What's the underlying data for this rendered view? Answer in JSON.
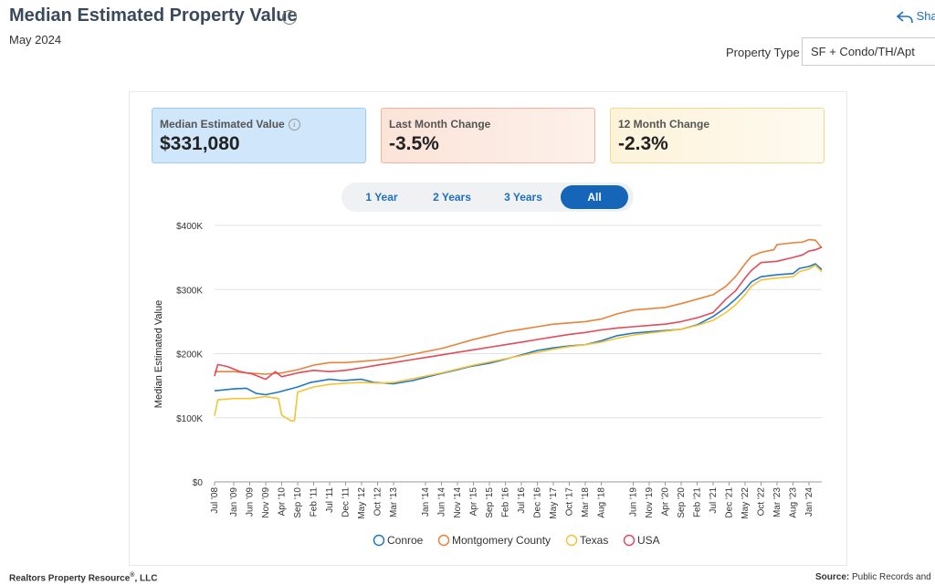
{
  "header": {
    "title": "Median Estimated Property Value",
    "date": "May 2024",
    "share_label": "Sha",
    "property_type_label": "Property Type",
    "property_type_value": "SF + Condo/TH/Apt"
  },
  "cards": [
    {
      "label": "Median Estimated Value",
      "value": "$331,080"
    },
    {
      "label": "Last Month Change",
      "value": "-3.5%"
    },
    {
      "label": "12 Month Change",
      "value": "-2.3%"
    }
  ],
  "ranges": [
    "1 Year",
    "2 Years",
    "3 Years",
    "All"
  ],
  "active_range": "All",
  "footer": {
    "left_a": "Realtors Property Resource",
    "left_reg": "®",
    "left_b": ", LLC",
    "source_label": "Source:",
    "source_text": "Public Records and"
  },
  "chart_data": {
    "type": "line",
    "ylabel": "Median Estimated Value",
    "xlabel": "",
    "ylim": [
      0,
      400000
    ],
    "y_ticks": [
      0,
      100000,
      200000,
      300000,
      400000
    ],
    "y_tick_labels": [
      "$0",
      "$100K",
      "$200K",
      "$300K",
      "$400K"
    ],
    "x_tick_labels": [
      "Jul '08",
      "Jan '09",
      "Jun '09",
      "Nov '09",
      "Apr '10",
      "Sep '10",
      "Feb '11",
      "Jul '11",
      "Dec '11",
      "May '12",
      "Oct '12",
      "Mar '13",
      "Jan '14",
      "Jun '14",
      "Nov '14",
      "Apr '15",
      "Sep '15",
      "Feb '16",
      "Jul '16",
      "Dec '16",
      "May '17",
      "Oct '17",
      "Mar '18",
      "Aug '18",
      "Jun '19",
      "Nov '19",
      "Apr '20",
      "Sep '20",
      "Feb '21",
      "Jul '21",
      "Dec '21",
      "May '22",
      "Oct '22",
      "Mar '23",
      "Aug '23",
      "Jan '24"
    ],
    "x_tick_positions": [
      0,
      6,
      11,
      16,
      21,
      26,
      31,
      36,
      41,
      46,
      51,
      56,
      66,
      71,
      76,
      81,
      86,
      91,
      96,
      101,
      106,
      111,
      116,
      121,
      131,
      136,
      141,
      146,
      151,
      156,
      161,
      166,
      171,
      176,
      181,
      186
    ],
    "x_range": [
      0,
      190
    ],
    "series": [
      {
        "name": "Conroe",
        "color": "#1f77c9",
        "points": [
          [
            0,
            142000
          ],
          [
            6,
            145000
          ],
          [
            10,
            146000
          ],
          [
            13,
            138000
          ],
          [
            16,
            136000
          ],
          [
            20,
            140000
          ],
          [
            26,
            148000
          ],
          [
            30,
            155000
          ],
          [
            36,
            160000
          ],
          [
            40,
            158000
          ],
          [
            46,
            160000
          ],
          [
            50,
            155000
          ],
          [
            56,
            153000
          ],
          [
            62,
            158000
          ],
          [
            66,
            163000
          ],
          [
            70,
            168000
          ],
          [
            76,
            175000
          ],
          [
            80,
            180000
          ],
          [
            86,
            185000
          ],
          [
            90,
            190000
          ],
          [
            96,
            198000
          ],
          [
            101,
            205000
          ],
          [
            106,
            209000
          ],
          [
            111,
            212000
          ],
          [
            116,
            214000
          ],
          [
            121,
            220000
          ],
          [
            126,
            228000
          ],
          [
            131,
            232000
          ],
          [
            136,
            234000
          ],
          [
            141,
            236000
          ],
          [
            146,
            238000
          ],
          [
            151,
            245000
          ],
          [
            156,
            258000
          ],
          [
            160,
            272000
          ],
          [
            163,
            285000
          ],
          [
            166,
            300000
          ],
          [
            168,
            312000
          ],
          [
            171,
            320000
          ],
          [
            176,
            323000
          ],
          [
            181,
            325000
          ],
          [
            183,
            333000
          ],
          [
            186,
            336000
          ],
          [
            188,
            340000
          ],
          [
            190,
            331080
          ]
        ]
      },
      {
        "name": "Montgomery County",
        "color": "#e8833a",
        "points": [
          [
            0,
            172000
          ],
          [
            6,
            172000
          ],
          [
            10,
            170000
          ],
          [
            16,
            168000
          ],
          [
            21,
            170000
          ],
          [
            26,
            175000
          ],
          [
            31,
            182000
          ],
          [
            36,
            186000
          ],
          [
            41,
            186000
          ],
          [
            46,
            188000
          ],
          [
            51,
            190000
          ],
          [
            56,
            193000
          ],
          [
            61,
            198000
          ],
          [
            66,
            203000
          ],
          [
            71,
            208000
          ],
          [
            76,
            215000
          ],
          [
            81,
            222000
          ],
          [
            86,
            228000
          ],
          [
            91,
            234000
          ],
          [
            96,
            238000
          ],
          [
            101,
            242000
          ],
          [
            106,
            246000
          ],
          [
            111,
            248000
          ],
          [
            116,
            250000
          ],
          [
            121,
            254000
          ],
          [
            126,
            262000
          ],
          [
            131,
            268000
          ],
          [
            136,
            270000
          ],
          [
            141,
            272000
          ],
          [
            146,
            278000
          ],
          [
            151,
            285000
          ],
          [
            156,
            292000
          ],
          [
            160,
            305000
          ],
          [
            163,
            320000
          ],
          [
            166,
            340000
          ],
          [
            168,
            352000
          ],
          [
            171,
            358000
          ],
          [
            175,
            362000
          ],
          [
            176,
            370000
          ],
          [
            181,
            373000
          ],
          [
            184,
            374000
          ],
          [
            186,
            378000
          ],
          [
            188,
            377000
          ],
          [
            190,
            365000
          ]
        ]
      },
      {
        "name": "Texas",
        "color": "#f4c430",
        "points": [
          [
            0,
            103000
          ],
          [
            1,
            128000
          ],
          [
            6,
            130000
          ],
          [
            11,
            130000
          ],
          [
            16,
            133000
          ],
          [
            20,
            130000
          ],
          [
            21,
            104000
          ],
          [
            24,
            95000
          ],
          [
            25,
            96000
          ],
          [
            26,
            140000
          ],
          [
            31,
            148000
          ],
          [
            36,
            152000
          ],
          [
            41,
            154000
          ],
          [
            46,
            155000
          ],
          [
            51,
            154000
          ],
          [
            56,
            155000
          ],
          [
            61,
            160000
          ],
          [
            66,
            165000
          ],
          [
            71,
            170000
          ],
          [
            76,
            176000
          ],
          [
            81,
            182000
          ],
          [
            86,
            187000
          ],
          [
            91,
            192000
          ],
          [
            96,
            197000
          ],
          [
            101,
            202000
          ],
          [
            106,
            207000
          ],
          [
            111,
            211000
          ],
          [
            116,
            214000
          ],
          [
            121,
            218000
          ],
          [
            126,
            224000
          ],
          [
            131,
            229000
          ],
          [
            136,
            232000
          ],
          [
            141,
            235000
          ],
          [
            146,
            238000
          ],
          [
            151,
            244000
          ],
          [
            156,
            252000
          ],
          [
            160,
            264000
          ],
          [
            163,
            276000
          ],
          [
            166,
            292000
          ],
          [
            168,
            305000
          ],
          [
            171,
            315000
          ],
          [
            176,
            318000
          ],
          [
            181,
            320000
          ],
          [
            183,
            328000
          ],
          [
            186,
            332000
          ],
          [
            188,
            338000
          ],
          [
            190,
            328000
          ]
        ]
      },
      {
        "name": "USA",
        "color": "#e34a5a",
        "points": [
          [
            0,
            165000
          ],
          [
            1,
            183000
          ],
          [
            4,
            180000
          ],
          [
            8,
            172000
          ],
          [
            12,
            168000
          ],
          [
            16,
            160000
          ],
          [
            19,
            172000
          ],
          [
            21,
            164000
          ],
          [
            26,
            170000
          ],
          [
            31,
            174000
          ],
          [
            36,
            172000
          ],
          [
            41,
            174000
          ],
          [
            46,
            178000
          ],
          [
            51,
            182000
          ],
          [
            56,
            186000
          ],
          [
            61,
            190000
          ],
          [
            66,
            194000
          ],
          [
            71,
            198000
          ],
          [
            76,
            202000
          ],
          [
            81,
            206000
          ],
          [
            86,
            210000
          ],
          [
            91,
            214000
          ],
          [
            96,
            218000
          ],
          [
            101,
            222000
          ],
          [
            106,
            226000
          ],
          [
            111,
            230000
          ],
          [
            116,
            233000
          ],
          [
            121,
            237000
          ],
          [
            126,
            240000
          ],
          [
            131,
            242000
          ],
          [
            136,
            244000
          ],
          [
            141,
            246000
          ],
          [
            146,
            250000
          ],
          [
            151,
            256000
          ],
          [
            156,
            264000
          ],
          [
            160,
            285000
          ],
          [
            163,
            298000
          ],
          [
            166,
            318000
          ],
          [
            168,
            330000
          ],
          [
            171,
            342000
          ],
          [
            176,
            344000
          ],
          [
            181,
            350000
          ],
          [
            184,
            354000
          ],
          [
            186,
            360000
          ],
          [
            188,
            362000
          ],
          [
            190,
            366000
          ]
        ]
      }
    ],
    "legend": [
      "Conroe",
      "Montgomery County",
      "Texas",
      "USA"
    ],
    "legend_position": "bottom",
    "grid": true
  }
}
